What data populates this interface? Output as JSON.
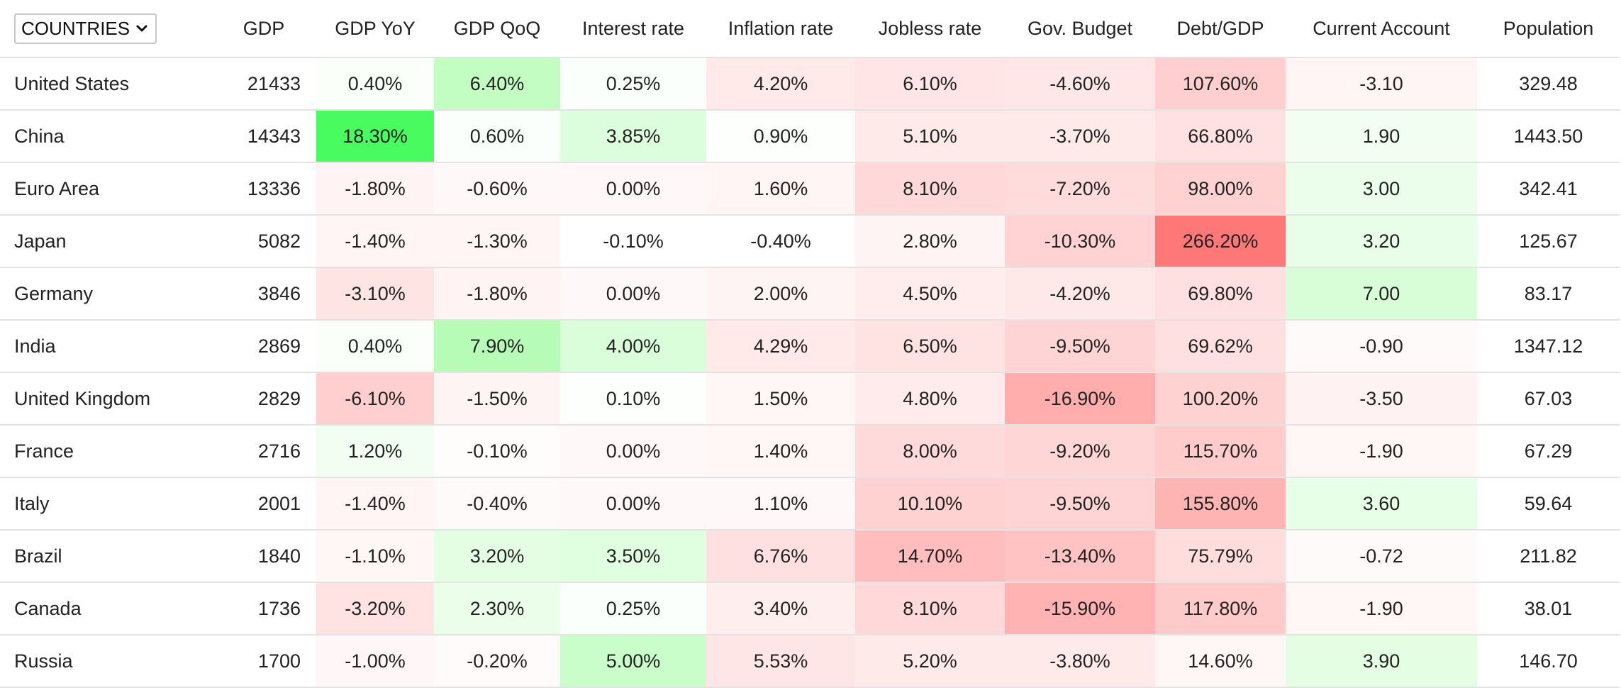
{
  "table": {
    "selector_label": "COUNTRIES",
    "headers": [
      "GDP",
      "GDP YoY",
      "GDP QoQ",
      "Interest rate",
      "Inflation rate",
      "Jobless rate",
      "Gov. Budget",
      "Debt/GDP",
      "Current Account",
      "Population"
    ],
    "rows": [
      {
        "country": "United States",
        "cells": [
          "21433",
          "0.40%",
          "6.40%",
          "0.25%",
          "4.20%",
          "6.10%",
          "-4.60%",
          "107.60%",
          "-3.10",
          "329.48"
        ],
        "colors": [
          "#ffffff",
          "#fafffa",
          "#c2fdc2",
          "#fbfffb",
          "#ffe9e9",
          "#ffe5e5",
          "#ffe7e7",
          "#ffcfcf",
          "#fff5f5",
          "#ffffff"
        ]
      },
      {
        "country": "China",
        "cells": [
          "14343",
          "18.30%",
          "0.60%",
          "3.85%",
          "0.90%",
          "5.10%",
          "-3.70%",
          "66.80%",
          "1.90",
          "1443.50"
        ],
        "colors": [
          "#ffffff",
          "#48fc60",
          "#fbfffb",
          "#dcfedc",
          "#fcfffc",
          "#ffeaea",
          "#ffeaea",
          "#ffe1e1",
          "#f1fef1",
          "#ffffff"
        ]
      },
      {
        "country": "Euro Area",
        "cells": [
          "13336",
          "-1.80%",
          "-0.60%",
          "0.00%",
          "1.60%",
          "8.10%",
          "-7.20%",
          "98.00%",
          "3.00",
          "342.41"
        ],
        "colors": [
          "#ffffff",
          "#fff3f3",
          "#fff8f8",
          "#fff8f8",
          "#fff5f5",
          "#ffd9d9",
          "#ffdcdc",
          "#ffd2d2",
          "#ebfeeb",
          "#ffffff"
        ]
      },
      {
        "country": "Japan",
        "cells": [
          "5082",
          "-1.40%",
          "-1.30%",
          "-0.10%",
          "-0.40%",
          "2.80%",
          "-10.30%",
          "266.20%",
          "3.20",
          "125.67"
        ],
        "colors": [
          "#ffffff",
          "#fff5f5",
          "#fff5f5",
          "#ffffff",
          "#ffffff",
          "#fff4f4",
          "#ffd3d3",
          "#ff7878",
          "#e9fee9",
          "#ffffff"
        ]
      },
      {
        "country": "Germany",
        "cells": [
          "3846",
          "-3.10%",
          "-1.80%",
          "0.00%",
          "2.00%",
          "4.50%",
          "-4.20%",
          "69.80%",
          "7.00",
          "83.17"
        ],
        "colors": [
          "#ffffff",
          "#ffe4e4",
          "#fff3f3",
          "#fff8f8",
          "#fff4f4",
          "#ffeded",
          "#ffe8e8",
          "#ffe0e0",
          "#d7fed7",
          "#ffffff"
        ]
      },
      {
        "country": "India",
        "cells": [
          "2869",
          "0.40%",
          "7.90%",
          "4.00%",
          "4.29%",
          "6.50%",
          "-9.50%",
          "69.62%",
          "-0.90",
          "1347.12"
        ],
        "colors": [
          "#ffffff",
          "#fafffa",
          "#b6fcb6",
          "#d9fed9",
          "#ffe9e9",
          "#ffe2e2",
          "#ffd4d4",
          "#ffe0e0",
          "#fffafa",
          "#ffffff"
        ]
      },
      {
        "country": "United Kingdom",
        "cells": [
          "2829",
          "-6.10%",
          "-1.50%",
          "0.10%",
          "1.50%",
          "4.80%",
          "-16.90%",
          "100.20%",
          "-3.50",
          "67.03"
        ],
        "colors": [
          "#ffffff",
          "#ffcfcf",
          "#fff4f4",
          "#fdfffd",
          "#fff6f6",
          "#ffebeb",
          "#ffadad",
          "#ffd2d2",
          "#fff2f2",
          "#ffffff"
        ]
      },
      {
        "country": "France",
        "cells": [
          "2716",
          "1.20%",
          "-0.10%",
          "0.00%",
          "1.40%",
          "8.00%",
          "-9.20%",
          "115.70%",
          "-1.90",
          "67.29"
        ],
        "colors": [
          "#ffffff",
          "#f1fef1",
          "#fffcfc",
          "#fff8f8",
          "#fff6f6",
          "#ffdada",
          "#ffd6d6",
          "#ffcbcb",
          "#fff6f6",
          "#ffffff"
        ]
      },
      {
        "country": "Italy",
        "cells": [
          "2001",
          "-1.40%",
          "-0.40%",
          "0.00%",
          "1.10%",
          "10.10%",
          "-9.50%",
          "155.80%",
          "3.60",
          "59.64"
        ],
        "colors": [
          "#ffffff",
          "#fff5f5",
          "#fffafa",
          "#fff8f8",
          "#fff8f8",
          "#ffd2d2",
          "#ffd4d4",
          "#ffb4b4",
          "#e7fee7",
          "#ffffff"
        ]
      },
      {
        "country": "Brazil",
        "cells": [
          "1840",
          "-1.10%",
          "3.20%",
          "3.50%",
          "6.76%",
          "14.70%",
          "-13.40%",
          "75.79%",
          "-0.72",
          "211.82"
        ],
        "colors": [
          "#ffffff",
          "#fff6f6",
          "#e3fee3",
          "#e0fee0",
          "#ffe0e0",
          "#ffbdbd",
          "#ffc3c3",
          "#ffdddd",
          "#fffafa",
          "#ffffff"
        ]
      },
      {
        "country": "Canada",
        "cells": [
          "1736",
          "-3.20%",
          "2.30%",
          "0.25%",
          "3.40%",
          "8.10%",
          "-15.90%",
          "117.80%",
          "-1.90",
          "38.01"
        ],
        "colors": [
          "#ffffff",
          "#ffe2e2",
          "#eafeea",
          "#fbfffb",
          "#ffeeee",
          "#ffd9d9",
          "#ffb3b3",
          "#ffcaca",
          "#fff6f6",
          "#ffffff"
        ]
      },
      {
        "country": "Russia",
        "cells": [
          "1700",
          "-1.00%",
          "-0.20%",
          "5.00%",
          "5.53%",
          "5.20%",
          "-3.80%",
          "14.60%",
          "3.90",
          "146.70"
        ],
        "colors": [
          "#ffffff",
          "#fff7f7",
          "#fffbfb",
          "#c9fdc9",
          "#ffe6e6",
          "#ffeaea",
          "#ffeaea",
          "#fff6f6",
          "#e4fee4",
          "#ffffff"
        ]
      }
    ]
  }
}
